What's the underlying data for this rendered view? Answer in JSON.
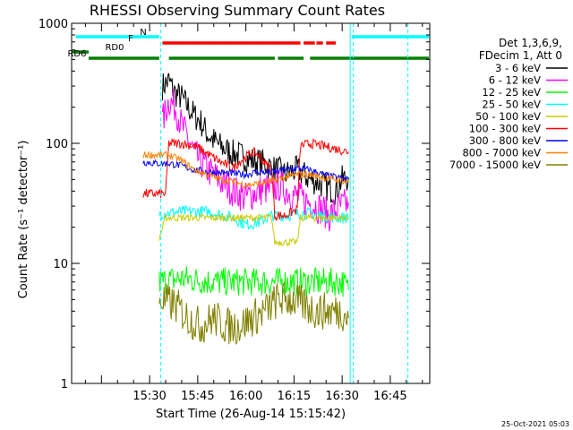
{
  "chart_data": {
    "type": "line",
    "title": "RHESSI Observing Summary Count Rates",
    "xlabel": "Start Time (26-Aug-14 15:15:42)",
    "ylabel": "Count Rate (s⁻¹ detector⁻¹)",
    "yscale": "log",
    "ylim": [
      1,
      1000
    ],
    "xlim_min": [
      5.7,
      117.3
    ],
    "x_ticks": [
      {
        "min": 30,
        "label": "15:30"
      },
      {
        "min": 45,
        "label": "15:45"
      },
      {
        "min": 60,
        "label": "16:00"
      },
      {
        "min": 75,
        "label": "16:15"
      },
      {
        "min": 90,
        "label": "16:30"
      },
      {
        "min": 105,
        "label": "16:45"
      }
    ],
    "y_ticks": [
      {
        "value": 1,
        "label": "1"
      },
      {
        "value": 10,
        "label": "10"
      },
      {
        "value": 100,
        "label": "100"
      },
      {
        "value": 1000,
        "label": "1000"
      }
    ],
    "timestamp": "25-Oct-2021 05:03",
    "legend_header": [
      "Det 1,3,6,9,",
      "FDecim 1, Att 0"
    ],
    "flags": [
      {
        "label": "N",
        "color": "#00ffff",
        "segments": [
          [
            7,
            33
          ],
          [
            93,
            117
          ]
        ]
      },
      {
        "label": "F",
        "color": "#ff0000",
        "segments": [
          [
            34,
            77
          ],
          [
            78,
            81.5
          ],
          [
            82,
            84
          ],
          [
            85,
            88
          ]
        ]
      },
      {
        "label": "RD0",
        "color": "#008000",
        "segments": [
          [
            6,
            11
          ]
        ]
      },
      {
        "label": "RD6",
        "color": "#008000",
        "segments": [
          [
            11,
            33
          ],
          [
            36,
            69
          ],
          [
            70,
            78
          ],
          [
            80,
            117
          ]
        ]
      }
    ],
    "vlines": [
      {
        "x": 33.5,
        "style": "dashed"
      },
      {
        "x": 92.5,
        "style": "solid"
      },
      {
        "x": 93.5,
        "style": "dashed"
      },
      {
        "x": 110.5,
        "style": "dashed"
      }
    ],
    "series": [
      {
        "name": "3 - 6 keV",
        "color": "#000000",
        "noise": 0.12,
        "points": [
          [
            34,
            300
          ],
          [
            36,
            330
          ],
          [
            38,
            260
          ],
          [
            40,
            240
          ],
          [
            42,
            200
          ],
          [
            44,
            170
          ],
          [
            46,
            150
          ],
          [
            48,
            120
          ],
          [
            50,
            105
          ],
          [
            52,
            95
          ],
          [
            54,
            88
          ],
          [
            56,
            82
          ],
          [
            58,
            80
          ],
          [
            60,
            75
          ],
          [
            62,
            72
          ],
          [
            64,
            70
          ],
          [
            66,
            68
          ],
          [
            68,
            62
          ],
          [
            70,
            60
          ],
          [
            72,
            55
          ],
          [
            74,
            58
          ],
          [
            76,
            60
          ],
          [
            78,
            55
          ],
          [
            80,
            50
          ],
          [
            82,
            48
          ],
          [
            84,
            45
          ],
          [
            86,
            42
          ],
          [
            88,
            40
          ],
          [
            90,
            50
          ],
          [
            92,
            52
          ]
        ]
      },
      {
        "name": "6 - 12 keV",
        "color": "#ff00ff",
        "noise": 0.14,
        "points": [
          [
            34,
            150
          ],
          [
            36,
            230
          ],
          [
            38,
            200
          ],
          [
            40,
            140
          ],
          [
            42,
            110
          ],
          [
            44,
            80
          ],
          [
            46,
            70
          ],
          [
            48,
            60
          ],
          [
            50,
            55
          ],
          [
            52,
            48
          ],
          [
            54,
            45
          ],
          [
            56,
            40
          ],
          [
            58,
            38
          ],
          [
            60,
            35
          ],
          [
            62,
            38
          ],
          [
            64,
            40
          ],
          [
            66,
            42
          ],
          [
            68,
            40
          ],
          [
            70,
            45
          ],
          [
            72,
            42
          ],
          [
            74,
            38
          ],
          [
            76,
            36
          ],
          [
            78,
            34
          ],
          [
            80,
            32
          ],
          [
            82,
            30
          ],
          [
            84,
            28
          ],
          [
            86,
            25
          ],
          [
            88,
            28
          ],
          [
            90,
            30
          ],
          [
            92,
            32
          ]
        ]
      },
      {
        "name": "12 - 25 keV",
        "color": "#00ff00",
        "noise": 0.12,
        "points": [
          [
            33,
            7
          ],
          [
            40,
            7.5
          ],
          [
            50,
            7
          ],
          [
            60,
            7
          ],
          [
            70,
            7
          ],
          [
            80,
            7
          ],
          [
            90,
            7
          ],
          [
            92,
            6
          ]
        ]
      },
      {
        "name": "25 - 50 keV",
        "color": "#00ffff",
        "noise": 0.05,
        "points": [
          [
            33,
            26
          ],
          [
            40,
            27
          ],
          [
            48,
            27
          ],
          [
            56,
            24
          ],
          [
            60,
            21
          ],
          [
            64,
            22
          ],
          [
            68,
            25
          ],
          [
            72,
            25
          ],
          [
            76,
            26
          ],
          [
            80,
            26
          ],
          [
            84,
            25
          ],
          [
            88,
            24
          ],
          [
            92,
            24
          ]
        ]
      },
      {
        "name": "50 - 100 keV",
        "color": "#cccc00",
        "noise": 0.03,
        "points": [
          [
            33,
            16
          ],
          [
            35,
            24
          ],
          [
            40,
            24
          ],
          [
            50,
            24
          ],
          [
            60,
            24
          ],
          [
            65,
            24
          ],
          [
            68,
            24
          ],
          [
            69,
            15
          ],
          [
            72,
            15
          ],
          [
            76,
            15
          ],
          [
            77,
            24
          ],
          [
            80,
            24
          ],
          [
            85,
            24
          ],
          [
            90,
            24
          ],
          [
            92,
            24
          ]
        ]
      },
      {
        "name": "100 - 300 keV",
        "color": "#ff0000",
        "noise": 0.04,
        "points": [
          [
            28,
            38
          ],
          [
            31,
            38
          ],
          [
            33,
            38
          ],
          [
            35,
            38
          ],
          [
            36,
            100
          ],
          [
            40,
            100
          ],
          [
            44,
            95
          ],
          [
            48,
            82
          ],
          [
            52,
            70
          ],
          [
            56,
            62
          ],
          [
            58,
            70
          ],
          [
            62,
            85
          ],
          [
            64,
            80
          ],
          [
            66,
            68
          ],
          [
            68,
            62
          ],
          [
            69,
            25
          ],
          [
            72,
            25
          ],
          [
            76,
            28
          ],
          [
            77,
            95
          ],
          [
            80,
            100
          ],
          [
            84,
            95
          ],
          [
            88,
            90
          ],
          [
            92,
            85
          ]
        ]
      },
      {
        "name": "300 - 800 keV",
        "color": "#0000ff",
        "noise": 0.03,
        "points": [
          [
            28,
            70
          ],
          [
            32,
            68
          ],
          [
            36,
            68
          ],
          [
            40,
            65
          ],
          [
            44,
            60
          ],
          [
            48,
            58
          ],
          [
            52,
            57
          ],
          [
            56,
            56
          ],
          [
            60,
            55
          ],
          [
            64,
            58
          ],
          [
            68,
            57
          ],
          [
            72,
            60
          ],
          [
            76,
            62
          ],
          [
            80,
            60
          ],
          [
            84,
            55
          ],
          [
            88,
            52
          ],
          [
            92,
            50
          ]
        ]
      },
      {
        "name": "800 - 7000 keV",
        "color": "#ff8000",
        "noise": 0.03,
        "points": [
          [
            28,
            80
          ],
          [
            32,
            80
          ],
          [
            36,
            80
          ],
          [
            40,
            72
          ],
          [
            44,
            60
          ],
          [
            48,
            55
          ],
          [
            52,
            50
          ],
          [
            56,
            48
          ],
          [
            60,
            45
          ],
          [
            64,
            46
          ],
          [
            68,
            48
          ],
          [
            72,
            52
          ],
          [
            76,
            55
          ],
          [
            80,
            55
          ],
          [
            84,
            52
          ],
          [
            88,
            50
          ],
          [
            92,
            48
          ]
        ]
      },
      {
        "name": "7000 - 15000 keV",
        "color": "#808000",
        "noise": 0.16,
        "points": [
          [
            33,
            5
          ],
          [
            38,
            4.5
          ],
          [
            42,
            3.5
          ],
          [
            46,
            3
          ],
          [
            50,
            3.5
          ],
          [
            54,
            3
          ],
          [
            58,
            3
          ],
          [
            62,
            3.5
          ],
          [
            66,
            4
          ],
          [
            70,
            5
          ],
          [
            74,
            5
          ],
          [
            78,
            4.5
          ],
          [
            82,
            4
          ],
          [
            86,
            4
          ],
          [
            90,
            4
          ],
          [
            92,
            3.5
          ]
        ]
      }
    ]
  }
}
